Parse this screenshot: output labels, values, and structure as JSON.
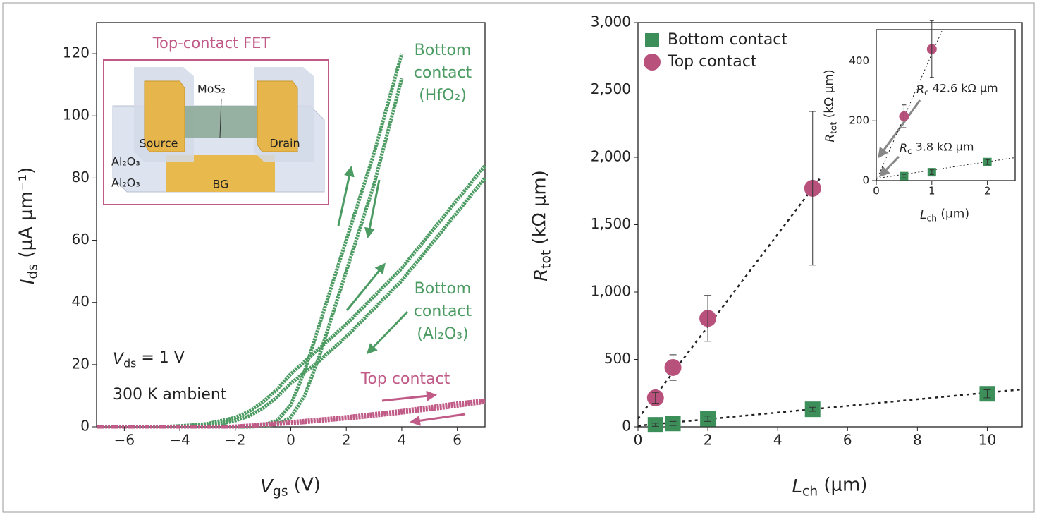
{
  "chart_data": [
    {
      "type": "line",
      "xlabel": {
        "main": "V",
        "sub": "gs",
        "rest": " (V)"
      },
      "ylabel": {
        "main": "I",
        "sub": "ds",
        "rest": " (μA μm⁻¹)"
      },
      "xlim": [
        -7,
        7
      ],
      "ylim": [
        0,
        130
      ],
      "xticks": [
        {
          "value": -6,
          "label": "−6"
        },
        {
          "value": -4,
          "label": "−4"
        },
        {
          "value": -2,
          "label": "−2"
        },
        0,
        2,
        4,
        6
      ],
      "yticks": [
        0,
        20,
        40,
        60,
        80,
        100,
        120
      ],
      "x": [
        -7,
        -6.5,
        -6,
        -5.5,
        -5,
        -4.5,
        -4,
        -3.5,
        -3,
        -2.5,
        -2,
        -1.5,
        -1,
        -0.5,
        0,
        0.5,
        1,
        1.5,
        2,
        2.5,
        3,
        3.5,
        4,
        4.5,
        5,
        5.5,
        6,
        6.5,
        7
      ],
      "series": [
        {
          "color": "#4b9b62",
          "values": [
            0,
            0,
            0,
            0,
            0,
            0,
            0,
            0,
            0,
            0,
            0,
            0.1,
            0.5,
            2,
            7,
            18,
            32,
            46,
            60,
            74,
            88,
            104,
            120,
            null,
            null,
            null,
            null,
            null,
            null
          ]
        },
        {
          "color": "#4b9b62",
          "values": [
            0,
            0,
            0,
            0,
            0,
            0,
            0,
            0,
            0,
            0,
            0,
            0,
            0.2,
            0.8,
            3,
            10,
            22,
            36,
            50,
            64,
            78,
            95,
            112,
            null,
            null,
            null,
            null,
            null,
            null
          ]
        },
        {
          "color": "#4b9b62",
          "values": [
            0,
            0,
            0,
            0,
            0,
            0.1,
            0.3,
            0.6,
            1,
            2,
            3,
            5,
            8,
            12,
            17,
            21,
            25,
            29,
            33,
            37.5,
            42,
            46.5,
            51,
            56.5,
            62,
            67.5,
            73,
            78.5,
            84
          ]
        },
        {
          "color": "#4b9b62",
          "values": [
            0,
            0,
            0,
            0,
            0,
            0,
            0,
            0.2,
            0.5,
            1,
            2,
            3.5,
            6,
            9.5,
            14,
            17.5,
            21,
            25,
            29,
            33.5,
            38,
            42.5,
            47,
            52.5,
            58,
            63.5,
            69,
            74.5,
            80
          ]
        },
        {
          "color": "#c05a86",
          "values": [
            0,
            0,
            0,
            0,
            0,
            0,
            0,
            0,
            0,
            0,
            0.2,
            0.5,
            0.9,
            1.2,
            1.6,
            2,
            2.4,
            2.8,
            3.2,
            3.7,
            4.2,
            4.7,
            5.2,
            5.8,
            6.4,
            7,
            7.6,
            8.1,
            8.6
          ]
        },
        {
          "color": "#c05a86",
          "values": [
            0,
            0,
            0,
            0,
            0,
            0,
            0,
            0,
            0,
            0,
            0,
            0.2,
            0.5,
            0.8,
            1.1,
            1.4,
            1.8,
            2.2,
            2.6,
            3,
            3.5,
            4,
            4.5,
            5,
            5.6,
            6.1,
            6.7,
            7.3,
            7.9
          ]
        }
      ],
      "annotations": [
        {
          "text": [
            "Bottom",
            "contact",
            "(HfO₂)"
          ],
          "color": "#4b9b62"
        },
        {
          "text": [
            "Bottom",
            "contact",
            "(Al₂O₃)"
          ],
          "color": "#4b9b62"
        },
        {
          "text": [
            "Top contact"
          ],
          "color": "#c05a86"
        },
        {
          "text": [
            {
              "main": "V",
              "sub": "ds",
              "rest": " = 1 V"
            }
          ],
          "color": "#222222"
        },
        {
          "text": [
            "300 K ambient"
          ],
          "color": "#222222"
        }
      ],
      "schematic": {
        "title": "Top-contact FET",
        "labels": [
          "MoS₂",
          "Source",
          "Drain",
          "Al₂O₃",
          "Al₂O₃",
          "BG"
        ]
      }
    },
    {
      "type": "scatter",
      "xlabel": {
        "main": "L",
        "sub": "ch",
        "rest": " (μm)"
      },
      "ylabel": {
        "main": "R",
        "sub": "tot",
        "rest": " (kΩ μm)"
      },
      "xlim": [
        0,
        11
      ],
      "ylim": [
        0,
        3000
      ],
      "xticks": [
        0,
        2,
        4,
        6,
        8,
        10
      ],
      "yticks": [
        0,
        500,
        {
          "value": 1000,
          "label": "1,000"
        },
        {
          "value": 1500,
          "label": "1,500"
        },
        {
          "value": 2000,
          "label": "2,000"
        },
        {
          "value": 2500,
          "label": "2,500"
        },
        {
          "value": 3000,
          "label": "3,000"
        }
      ],
      "legend": "upper left",
      "series": [
        {
          "name": "Bottom contact",
          "marker": "square",
          "color": "#3d8f5a",
          "x": [
            0.5,
            1,
            2,
            5,
            10
          ],
          "values": [
            15,
            25,
            60,
            130,
            245
          ],
          "errors": [
            12,
            15,
            20,
            15,
            30
          ]
        },
        {
          "name": "Top contact",
          "marker": "circle",
          "color": "#b8527c",
          "x": [
            0.5,
            1,
            2,
            5
          ],
          "values": [
            215,
            440,
            805,
            1770
          ],
          "errors": [
            40,
            95,
            170,
            570
          ]
        }
      ],
      "fits": [
        {
          "x": [
            0,
            11
          ],
          "values": [
            8,
            278
          ]
        },
        {
          "x": [
            0,
            5.2
          ],
          "values": [
            60,
            1840
          ]
        }
      ]
    },
    {
      "type": "scatter",
      "xlabel": {
        "main": "L",
        "sub": "ch",
        "rest": " (μm)"
      },
      "ylabel": {
        "main": "R",
        "sub": "tot",
        "rest": " (kΩ μm)"
      },
      "xlim": [
        0,
        2.5
      ],
      "ylim": [
        0,
        505
      ],
      "xticks": [
        0,
        1,
        2
      ],
      "yticks": [
        0,
        200,
        400
      ],
      "series": [
        {
          "marker": "square",
          "color": "#3d8f5a",
          "x": [
            0.5,
            1,
            2
          ],
          "values": [
            15,
            28,
            62
          ],
          "errors": [
            6,
            8,
            8
          ]
        },
        {
          "marker": "circle",
          "color": "#b8527c",
          "x": [
            0.5,
            1
          ],
          "values": [
            215,
            440
          ],
          "errors": [
            38,
            95
          ]
        }
      ],
      "fits": [
        {
          "x": [
            0,
            2.5
          ],
          "values": [
            7,
            77
          ]
        },
        {
          "x": [
            0,
            1.18
          ],
          "values": [
            0,
            500
          ]
        }
      ],
      "annotations": [
        {
          "text": [
            {
              "main": "R",
              "sub": "c",
              "rest": " 42.6 kΩ μm"
            }
          ],
          "color": "#222222"
        },
        {
          "text": [
            {
              "main": "R",
              "sub": "c",
              "rest": " 3.8 kΩ μm"
            }
          ],
          "color": "#222222"
        }
      ]
    }
  ]
}
